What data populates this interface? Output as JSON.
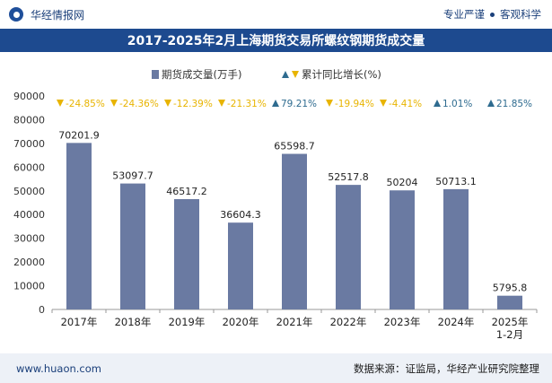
{
  "header": {
    "brand": "华经情报网",
    "tag1": "专业严谨",
    "tag2": "客观科学",
    "title": "2017-2025年2月上海期货交易所螺纹钢期货成交量"
  },
  "footer": {
    "site": "www.huaon.com",
    "source": "数据来源：证监局，华经产业研究院整理"
  },
  "colors": {
    "bar": "#6a7aa2",
    "title_bg": "#1d4a8f",
    "down": "#e8b400",
    "up": "#2e6b8f"
  },
  "chart_data": {
    "type": "bar",
    "categories": [
      "2017年",
      "2018年",
      "2019年",
      "2020年",
      "2021年",
      "2022年",
      "2023年",
      "2024年",
      "2025年\n1-2月"
    ],
    "series": [
      {
        "name": "期货成交量(万手)",
        "values": [
          70201.9,
          53097.7,
          46517.2,
          36604.3,
          65598.7,
          52517.8,
          50204,
          50713.1,
          5795.8
        ],
        "labels": [
          "70201.9",
          "53097.7",
          "46517.2",
          "36604.3",
          "65598.7",
          "52517.8",
          "50204",
          "50713.1",
          "5795.8"
        ]
      },
      {
        "name": "累计同比增长(%)",
        "values": [
          -24.85,
          -24.36,
          -12.39,
          -21.31,
          79.21,
          -19.94,
          -4.41,
          1.01,
          21.85
        ],
        "labels": [
          "-24.85%",
          "-24.36%",
          "-12.39%",
          "-21.31%",
          "79.21%",
          "-19.94%",
          "-4.41%",
          "1.01%",
          "21.85%"
        ]
      }
    ],
    "ylim": [
      0,
      90000
    ],
    "yticks": [
      "0",
      "10000",
      "20000",
      "30000",
      "40000",
      "50000",
      "60000",
      "70000",
      "80000",
      "90000"
    ],
    "legend": "top-center",
    "grid": false
  }
}
